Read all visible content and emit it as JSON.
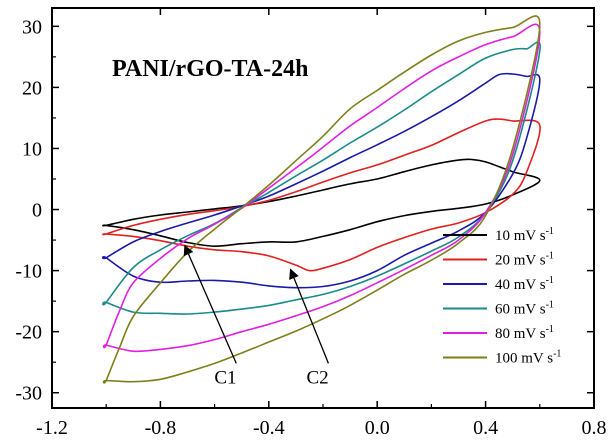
{
  "chart_data": {
    "type": "line",
    "title": "PANI/rGO-TA-24h",
    "xlabel": "",
    "ylabel": "",
    "xlim": [
      -1.2,
      0.8
    ],
    "ylim": [
      -32.5,
      33
    ],
    "xticks": [
      -1.2,
      -0.8,
      -0.4,
      0.0,
      0.4,
      0.8
    ],
    "xtick_labels": [
      "-1.2",
      "-0.8",
      "-0.4",
      "0.0",
      "0.4",
      "0.8"
    ],
    "yticks": [
      -30,
      -20,
      -10,
      0,
      10,
      20,
      30
    ],
    "ytick_labels": [
      "-30",
      "-20",
      "-10",
      "0",
      "10",
      "20",
      "30"
    ],
    "grid": false,
    "legend_position": "right",
    "series": [
      {
        "name": "10 mV s",
        "name_sup": "-1",
        "color": "#000000",
        "x": [
          -1.0,
          -0.9,
          -0.8,
          -0.7,
          -0.6,
          -0.5,
          -0.4,
          -0.3,
          -0.2,
          -0.1,
          0.0,
          0.1,
          0.2,
          0.3,
          0.35,
          0.4,
          0.5,
          0.6,
          0.5,
          0.4,
          0.3,
          0.2,
          0.1,
          0.0,
          -0.1,
          -0.2,
          -0.3,
          -0.4,
          -0.5,
          -0.6,
          -0.7,
          -0.8,
          -0.9,
          -1.0
        ],
        "y": [
          -2.6,
          -1.6,
          -0.9,
          -0.4,
          0.1,
          0.6,
          1.3,
          2.2,
          3.2,
          4.2,
          5.0,
          6.2,
          7.3,
          8.1,
          8.2,
          7.8,
          6.2,
          4.8,
          2.4,
          0.9,
          0.2,
          -0.3,
          -1.0,
          -2.0,
          -3.3,
          -4.4,
          -5.3,
          -5.3,
          -5.6,
          -6.0,
          -5.4,
          -4.3,
          -3.3,
          -2.6
        ]
      },
      {
        "name": "20 mV s",
        "name_sup": "-1",
        "color": "#e02020",
        "x": [
          -1.0,
          -0.9,
          -0.8,
          -0.7,
          -0.6,
          -0.5,
          -0.4,
          -0.3,
          -0.2,
          -0.1,
          0.0,
          0.1,
          0.2,
          0.3,
          0.4,
          0.45,
          0.5,
          0.6,
          0.55,
          0.5,
          0.4,
          0.3,
          0.2,
          0.1,
          0.0,
          -0.1,
          -0.2,
          -0.25,
          -0.3,
          -0.4,
          -0.5,
          -0.6,
          -0.7,
          -0.8,
          -0.9,
          -1.0
        ],
        "y": [
          -4.0,
          -2.6,
          -1.6,
          -0.8,
          -0.2,
          0.5,
          1.5,
          2.9,
          4.5,
          6.0,
          7.3,
          8.9,
          10.5,
          12.6,
          14.5,
          14.8,
          14.5,
          13.8,
          6.0,
          2.5,
          -0.5,
          -2.2,
          -3.2,
          -4.6,
          -6.2,
          -8.2,
          -9.6,
          -10.0,
          -9.1,
          -7.6,
          -6.9,
          -6.6,
          -6.0,
          -5.1,
          -4.4,
          -4.0
        ]
      },
      {
        "name": "40 mV s",
        "name_sup": "-1",
        "color": "#1a1aa8",
        "x": [
          -1.0,
          -0.9,
          -0.8,
          -0.7,
          -0.6,
          -0.5,
          -0.4,
          -0.3,
          -0.2,
          -0.1,
          0.0,
          0.1,
          0.2,
          0.3,
          0.4,
          0.45,
          0.5,
          0.55,
          0.6,
          0.55,
          0.5,
          0.4,
          0.3,
          0.2,
          0.1,
          0.0,
          -0.1,
          -0.2,
          -0.3,
          -0.4,
          -0.5,
          -0.6,
          -0.7,
          -0.8,
          -0.9,
          -1.0
        ],
        "y": [
          -7.9,
          -5.3,
          -3.6,
          -2.2,
          -0.9,
          0.6,
          2.2,
          4.2,
          6.3,
          8.5,
          10.6,
          12.8,
          15.2,
          17.8,
          20.7,
          22.1,
          22.2,
          21.8,
          21.2,
          11.5,
          5.8,
          -0.5,
          -3.5,
          -5.5,
          -7.5,
          -10.0,
          -11.7,
          -12.6,
          -12.8,
          -12.5,
          -11.9,
          -11.6,
          -11.7,
          -11.9,
          -10.9,
          -7.9
        ]
      },
      {
        "name": "60 mV s",
        "name_sup": "-1",
        "color": "#1a8a8a",
        "x": [
          -1.0,
          -0.9,
          -0.8,
          -0.7,
          -0.6,
          -0.5,
          -0.4,
          -0.3,
          -0.2,
          -0.1,
          0.0,
          0.1,
          0.2,
          0.3,
          0.4,
          0.5,
          0.55,
          0.6,
          0.5,
          0.4,
          0.3,
          0.2,
          0.1,
          0.0,
          -0.1,
          -0.2,
          -0.3,
          -0.4,
          -0.5,
          -0.6,
          -0.7,
          -0.8,
          -0.9,
          -1.0
        ],
        "y": [
          -15.2,
          -9.5,
          -6.6,
          -4.3,
          -2.3,
          0.3,
          2.8,
          5.5,
          8.1,
          10.9,
          13.5,
          16.3,
          19.3,
          22.1,
          24.8,
          26.2,
          26.3,
          26.0,
          8.0,
          -0.5,
          -4.5,
          -6.8,
          -8.9,
          -10.9,
          -12.6,
          -13.9,
          -14.8,
          -15.7,
          -16.3,
          -16.8,
          -17.1,
          -17.0,
          -16.8,
          -15.2
        ]
      },
      {
        "name": "80 mV s",
        "name_sup": "-1",
        "color": "#e020e0",
        "x": [
          -1.0,
          -0.95,
          -0.9,
          -0.8,
          -0.7,
          -0.6,
          -0.5,
          -0.4,
          -0.3,
          -0.2,
          -0.1,
          0.0,
          0.1,
          0.2,
          0.3,
          0.4,
          0.5,
          0.6,
          0.5,
          0.4,
          0.3,
          0.2,
          0.1,
          0.0,
          -0.1,
          -0.2,
          -0.3,
          -0.4,
          -0.5,
          -0.6,
          -0.7,
          -0.8,
          -0.9,
          -1.0
        ],
        "y": [
          -22.2,
          -16.5,
          -12.0,
          -8.0,
          -4.8,
          -2.4,
          0.2,
          3.5,
          6.8,
          10.2,
          13.7,
          16.7,
          19.8,
          22.7,
          25.0,
          27.0,
          28.3,
          29.0,
          9.0,
          -0.5,
          -5.0,
          -7.5,
          -9.8,
          -12.0,
          -14.1,
          -15.9,
          -17.4,
          -18.8,
          -20.0,
          -21.3,
          -22.3,
          -22.9,
          -23.2,
          -22.2
        ]
      },
      {
        "name": "100 mV s",
        "name_sup": "-1",
        "color": "#7f7f1a",
        "x": [
          -1.0,
          -0.95,
          -0.9,
          -0.8,
          -0.7,
          -0.6,
          -0.5,
          -0.4,
          -0.3,
          -0.2,
          -0.1,
          0.0,
          0.1,
          0.2,
          0.3,
          0.4,
          0.5,
          0.6,
          0.5,
          0.4,
          0.3,
          0.2,
          0.1,
          0.0,
          -0.1,
          -0.2,
          -0.3,
          -0.4,
          -0.5,
          -0.6,
          -0.7,
          -0.8,
          -0.9,
          -1.0
        ],
        "y": [
          -28.0,
          -22.5,
          -17.5,
          -12.0,
          -7.0,
          -3.2,
          0.3,
          4.0,
          8.0,
          12.0,
          16.5,
          19.5,
          22.5,
          25.3,
          27.6,
          29.0,
          29.8,
          30.3,
          10.0,
          -1.0,
          -5.5,
          -8.3,
          -10.6,
          -13.2,
          -15.7,
          -17.9,
          -19.9,
          -21.7,
          -23.5,
          -25.2,
          -26.6,
          -27.8,
          -28.2,
          -28.0
        ]
      }
    ],
    "annotations": [
      {
        "label": "C1",
        "text_at": [
          -0.56,
          -28.5
        ],
        "arrow_from": [
          -0.52,
          -25.2
        ],
        "arrow_to": [
          -0.71,
          -5.9
        ]
      },
      {
        "label": "C2",
        "text_at": [
          -0.22,
          -28.5
        ],
        "arrow_from": [
          -0.18,
          -25.2
        ],
        "arrow_to": [
          -0.32,
          -9.8
        ]
      }
    ]
  }
}
